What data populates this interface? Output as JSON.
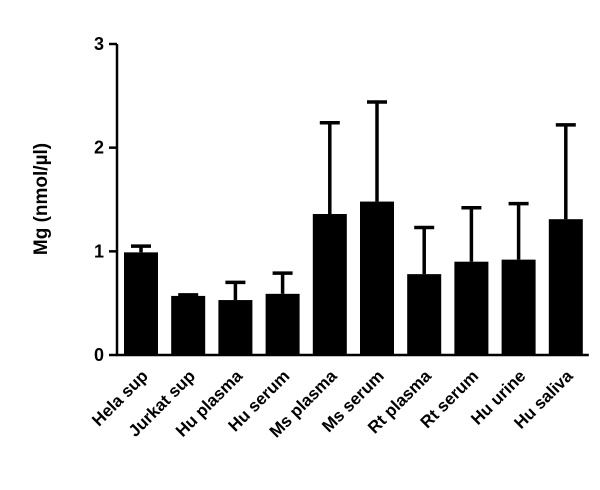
{
  "chart_data": {
    "type": "bar",
    "title": "",
    "xlabel": "",
    "ylabel": "Mg (nmol/µl)",
    "ylim": [
      0,
      3
    ],
    "yticks": [
      0,
      1,
      2,
      3
    ],
    "ytick_labels": [
      "0",
      "1",
      "2",
      "3"
    ],
    "grid": false,
    "legend": "none",
    "bar_color": "#000000",
    "categories": [
      "Hela sup",
      "Jurkat sup",
      "Hu plasma",
      "Hu serum",
      "Ms plasma",
      "Ms serum",
      "Rt plasma",
      "Rt serum",
      "Hu urine",
      "Hu saliva"
    ],
    "values": [
      0.99,
      0.57,
      0.53,
      0.59,
      1.36,
      1.48,
      0.78,
      0.9,
      0.92,
      1.31
    ],
    "error_upper": [
      0.06,
      0.01,
      0.17,
      0.2,
      0.88,
      0.96,
      0.45,
      0.52,
      0.54,
      0.91
    ]
  }
}
